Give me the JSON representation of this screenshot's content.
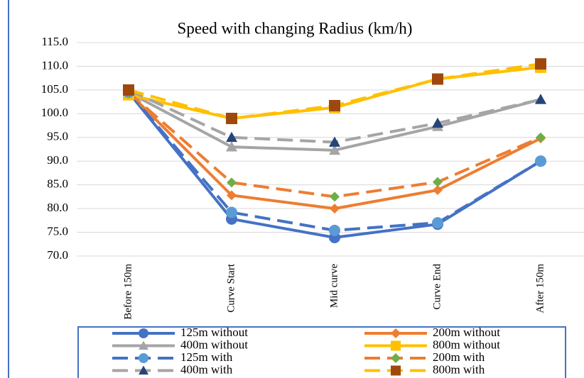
{
  "chart_data": {
    "type": "line",
    "title": "Speed with changing Radius (km/h)",
    "categories": [
      "Before 150m",
      "Curve Start",
      "Mid curve",
      "Curve End",
      "After 150m"
    ],
    "ylim": [
      70,
      115
    ],
    "yticks": [
      {
        "value": 70,
        "label": "70.0"
      },
      {
        "value": 75,
        "label": "75.0"
      },
      {
        "value": 80,
        "label": "80.0"
      },
      {
        "value": 85,
        "label": "85.0"
      },
      {
        "value": 90,
        "label": "90.0"
      },
      {
        "value": 95,
        "label": "95.0"
      },
      {
        "value": 100,
        "label": "100.0"
      },
      {
        "value": 105,
        "label": "105.0"
      },
      {
        "value": 110,
        "label": "110.0"
      },
      {
        "value": 115,
        "label": "115.0"
      }
    ],
    "grid": true,
    "legend": "bottom",
    "series": [
      {
        "name": "125m without",
        "color": "#4472c4",
        "marker_color": "#4472c4",
        "marker": "circle",
        "dashed": false,
        "values": [
          104.5,
          77.8,
          73.9,
          76.7,
          90.0
        ]
      },
      {
        "name": "200m without",
        "color": "#ed7d31",
        "marker_color": "#ed7d31",
        "marker": "diamond",
        "dashed": false,
        "values": [
          104.5,
          82.8,
          80.0,
          83.9,
          94.8
        ]
      },
      {
        "name": "400m without",
        "color": "#a5a5a5",
        "marker_color": "#a5a5a5",
        "marker": "triangle",
        "dashed": false,
        "values": [
          104.5,
          93.0,
          92.3,
          97.3,
          103.0
        ]
      },
      {
        "name": "800m without",
        "color": "#ffc000",
        "marker_color": "#ffc000",
        "marker": "square",
        "dashed": false,
        "values": [
          104.0,
          99.0,
          101.3,
          107.3,
          109.8
        ]
      },
      {
        "name": "125m with",
        "color": "#4472c4",
        "marker_color": "#5b9bd5",
        "marker": "circle",
        "dashed": true,
        "values": [
          104.5,
          79.2,
          75.4,
          77.0,
          90.0
        ]
      },
      {
        "name": "200m with",
        "color": "#ed7d31",
        "marker_color": "#70ad47",
        "marker": "diamond",
        "dashed": true,
        "values": [
          104.5,
          85.5,
          82.5,
          85.6,
          95.0
        ]
      },
      {
        "name": "400m with",
        "color": "#a5a5a5",
        "marker_color": "#264478",
        "marker": "triangle",
        "dashed": true,
        "values": [
          105.0,
          95.0,
          94.0,
          98.0,
          103.0
        ]
      },
      {
        "name": "800m with",
        "color": "#ffc000",
        "marker_color": "#9e480e",
        "marker": "square",
        "dashed": true,
        "values": [
          105.0,
          99.0,
          101.7,
          107.3,
          110.5
        ]
      }
    ]
  }
}
